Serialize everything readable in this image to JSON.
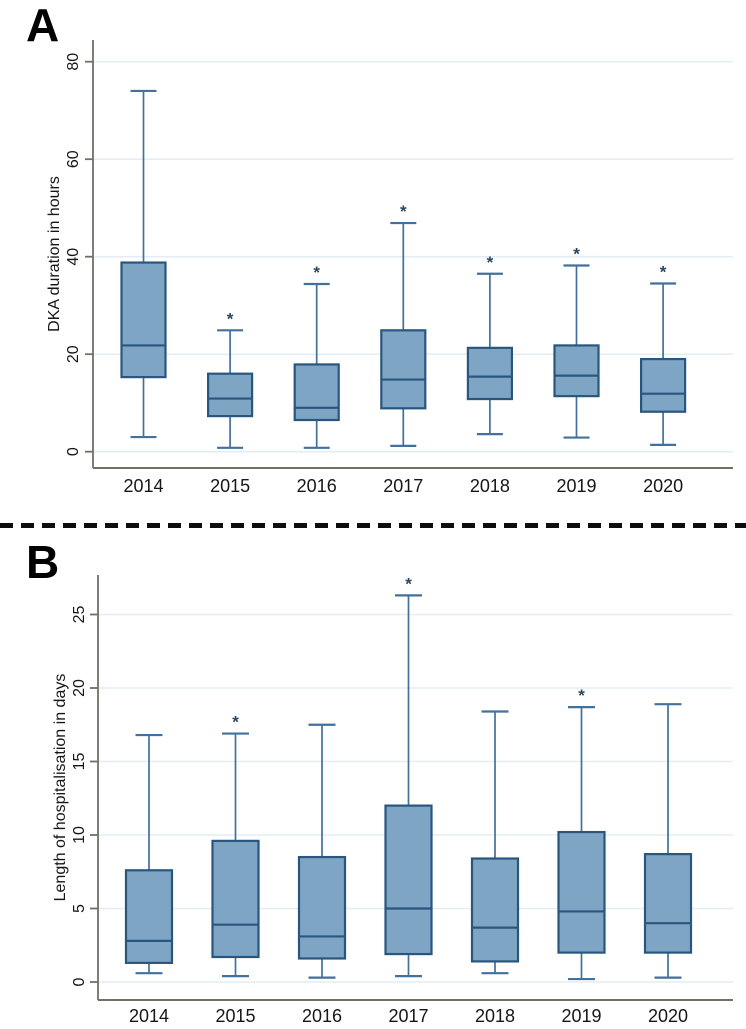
{
  "figure_title": "",
  "style": {
    "box_fill": "#7fa5c5",
    "box_stroke": "#29567f",
    "median_stroke": "#29567f",
    "whisker_stroke": "#41719c",
    "grid_color": "#e3eef4",
    "axis_color": "#6e7265",
    "text_color": "#161616",
    "asterisk_color": "#2a4660",
    "separator_color": "#0d0d0d",
    "background": "#ffffff"
  },
  "chart_data": [
    {
      "type": "boxplot",
      "panel_label": "A",
      "ylabel": "DKA duration in hours",
      "xlabel": "",
      "categories": [
        "2014",
        "2015",
        "2016",
        "2017",
        "2018",
        "2019",
        "2020"
      ],
      "yticks": [
        0,
        20,
        40,
        60,
        80
      ],
      "ylim": [
        0,
        86
      ],
      "grid": true,
      "legend": "none",
      "significance_marker": "*",
      "series": [
        {
          "category": "2014",
          "min": 3.0,
          "q1": 15.3,
          "median": 21.8,
          "q3": 38.8,
          "max": 74.0,
          "significant": false
        },
        {
          "category": "2015",
          "min": 0.8,
          "q1": 7.3,
          "median": 10.9,
          "q3": 16.0,
          "max": 24.9,
          "significant": true
        },
        {
          "category": "2016",
          "min": 0.8,
          "q1": 6.5,
          "median": 9.0,
          "q3": 17.9,
          "max": 34.4,
          "significant": true
        },
        {
          "category": "2017",
          "min": 1.2,
          "q1": 8.9,
          "median": 14.8,
          "q3": 24.9,
          "max": 46.9,
          "significant": true
        },
        {
          "category": "2018",
          "min": 3.6,
          "q1": 10.8,
          "median": 15.4,
          "q3": 21.3,
          "max": 36.5,
          "significant": true
        },
        {
          "category": "2019",
          "min": 2.9,
          "q1": 11.4,
          "median": 15.6,
          "q3": 21.8,
          "max": 38.2,
          "significant": true
        },
        {
          "category": "2020",
          "min": 1.4,
          "q1": 8.2,
          "median": 11.9,
          "q3": 19.0,
          "max": 34.5,
          "significant": true
        }
      ]
    },
    {
      "type": "boxplot",
      "panel_label": "B",
      "ylabel": "Length of hospitalisation in days",
      "xlabel": "",
      "categories": [
        "2014",
        "2015",
        "2016",
        "2017",
        "2018",
        "2019",
        "2020"
      ],
      "yticks": [
        0,
        5,
        10,
        15,
        20,
        25
      ],
      "ylim": [
        0,
        27.5
      ],
      "grid": true,
      "legend": "none",
      "significance_marker": "*",
      "series": [
        {
          "category": "2014",
          "min": 0.6,
          "q1": 1.3,
          "median": 2.8,
          "q3": 7.6,
          "max": 16.8,
          "significant": false
        },
        {
          "category": "2015",
          "min": 0.4,
          "q1": 1.7,
          "median": 3.9,
          "q3": 9.6,
          "max": 16.9,
          "significant": true
        },
        {
          "category": "2016",
          "min": 0.3,
          "q1": 1.6,
          "median": 3.1,
          "q3": 8.5,
          "max": 17.5,
          "significant": false
        },
        {
          "category": "2017",
          "min": 0.4,
          "q1": 1.9,
          "median": 5.0,
          "q3": 12.0,
          "max": 26.3,
          "significant": true
        },
        {
          "category": "2018",
          "min": 0.6,
          "q1": 1.4,
          "median": 3.7,
          "q3": 8.4,
          "max": 18.4,
          "significant": false
        },
        {
          "category": "2019",
          "min": 0.2,
          "q1": 2.0,
          "median": 4.8,
          "q3": 10.2,
          "max": 18.7,
          "significant": true
        },
        {
          "category": "2020",
          "min": 0.3,
          "q1": 2.0,
          "median": 4.0,
          "q3": 8.7,
          "max": 18.9,
          "significant": false
        }
      ]
    }
  ]
}
